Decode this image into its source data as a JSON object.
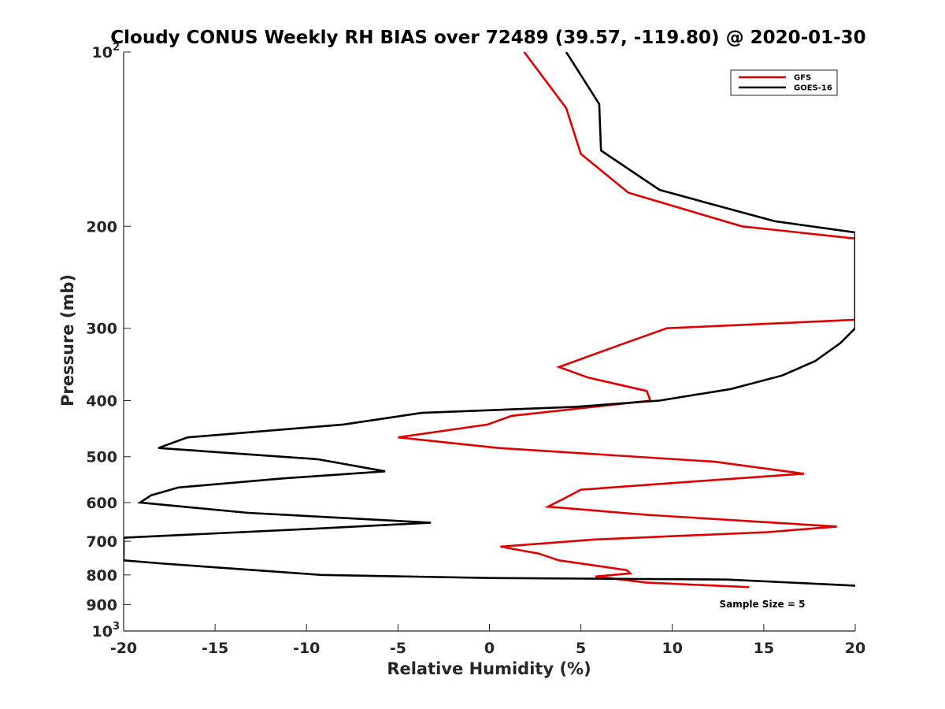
{
  "chart_data": {
    "type": "line",
    "title": "Cloudy CONUS Weekly RH BIAS over 72489 (39.57, -119.80) @ 2020-01-30",
    "xlabel": "Relative Humidity (%)",
    "ylabel": "Pressure (mb)",
    "xlim": [
      -20,
      20
    ],
    "ylim": [
      100,
      1000
    ],
    "y_scale": "log",
    "y_reversed": true,
    "x_ticks": [
      "-20",
      "-15",
      "-10",
      "-5",
      "0",
      "5",
      "10",
      "15",
      "20"
    ],
    "y_ticks": [
      {
        "value": 100,
        "base": "10",
        "exp": "2"
      },
      {
        "value": 200,
        "label": "200"
      },
      {
        "value": 300,
        "label": "300"
      },
      {
        "value": 400,
        "label": "400"
      },
      {
        "value": 500,
        "label": "500"
      },
      {
        "value": 600,
        "label": "600"
      },
      {
        "value": 700,
        "label": "700"
      },
      {
        "value": 800,
        "label": "800"
      },
      {
        "value": 900,
        "label": "900"
      },
      {
        "value": 1000,
        "base": "10",
        "exp": "3"
      }
    ],
    "grid": false,
    "legend_position": "top-right",
    "annotation": "Sample Size = 5",
    "series": [
      {
        "name": "GFS",
        "color": "#e00000",
        "points": [
          [
            1.9,
            100
          ],
          [
            4.2,
            125
          ],
          [
            5.0,
            150
          ],
          [
            7.6,
            175
          ],
          [
            13.8,
            200
          ],
          [
            20.0,
            210
          ],
          [
            20.0,
            290
          ],
          [
            9.7,
            300
          ],
          [
            7.2,
            320
          ],
          [
            3.8,
            350
          ],
          [
            5.4,
            365
          ],
          [
            8.6,
            385
          ],
          [
            8.8,
            400
          ],
          [
            1.2,
            425
          ],
          [
            -0.1,
            440
          ],
          [
            -5.0,
            463
          ],
          [
            0.5,
            483
          ],
          [
            12.3,
            510
          ],
          [
            17.2,
            535
          ],
          [
            11.8,
            550
          ],
          [
            5.0,
            570
          ],
          [
            4.1,
            590
          ],
          [
            3.2,
            610
          ],
          [
            8.6,
            630
          ],
          [
            19.0,
            660
          ],
          [
            15.2,
            675
          ],
          [
            5.7,
            695
          ],
          [
            0.6,
            715
          ],
          [
            2.7,
            735
          ],
          [
            3.8,
            755
          ],
          [
            7.5,
            785
          ],
          [
            7.7,
            795
          ],
          [
            5.8,
            805
          ],
          [
            8.6,
            825
          ],
          [
            14.2,
            840
          ]
        ]
      },
      {
        "name": "GOES-16",
        "color": "#000000",
        "points": [
          [
            4.2,
            100
          ],
          [
            6.0,
            123
          ],
          [
            6.1,
            148
          ],
          [
            9.3,
            173
          ],
          [
            13.2,
            187
          ],
          [
            15.6,
            196
          ],
          [
            20.0,
            205
          ],
          [
            20.0,
            285
          ],
          [
            20.0,
            300
          ],
          [
            19.2,
            318
          ],
          [
            17.8,
            342
          ],
          [
            16.0,
            362
          ],
          [
            13.2,
            382
          ],
          [
            9.3,
            400
          ],
          [
            4.7,
            410
          ],
          [
            -3.7,
            420
          ],
          [
            -8.0,
            440
          ],
          [
            -16.5,
            463
          ],
          [
            -18.1,
            483
          ],
          [
            -9.4,
            505
          ],
          [
            -5.7,
            530
          ],
          [
            -11.3,
            545
          ],
          [
            -17.0,
            565
          ],
          [
            -18.5,
            583
          ],
          [
            -19.1,
            600
          ],
          [
            -13.2,
            625
          ],
          [
            -3.2,
            650
          ],
          [
            -9.3,
            665
          ],
          [
            -20.0,
            690
          ],
          [
            -20.0,
            755
          ],
          [
            -17.8,
            765
          ],
          [
            -9.2,
            800
          ],
          [
            0.0,
            810
          ],
          [
            13.0,
            815
          ],
          [
            20.0,
            835
          ]
        ]
      }
    ]
  }
}
